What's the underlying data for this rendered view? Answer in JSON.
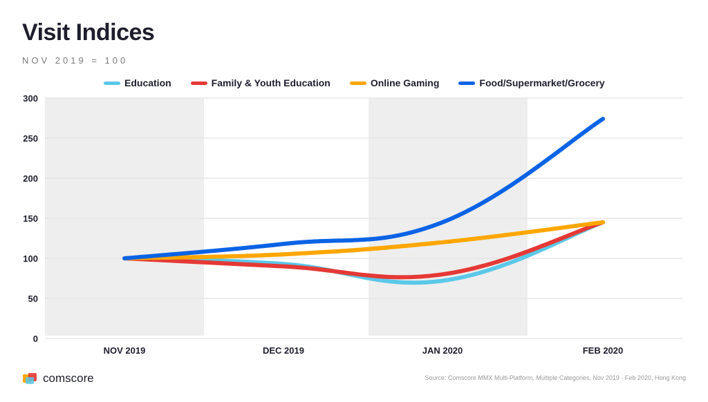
{
  "title": "Visit Indices",
  "subtitle": "NOV 2019 = 100",
  "source": "Source: Comscore MMX Multi-Platform, Multiple Categories, Nov 2019 - Feb 2020, Hong Kong",
  "brand": "comscore",
  "colors": {
    "education": "#5bc8e8",
    "family": "#e53935",
    "gaming": "#ffa600",
    "food": "#0b63e5",
    "shade": "#eeeeee",
    "grid": "#dddddd"
  },
  "chart_data": {
    "type": "line",
    "title": "Visit Indices",
    "subtitle": "NOV 2019 = 100",
    "xlabel": "",
    "ylabel": "",
    "categories": [
      "NOV 2019",
      "DEC 2019",
      "JAN 2020",
      "FEB 2020"
    ],
    "yticks": [
      "0",
      "50",
      "100",
      "150",
      "200",
      "250",
      "300"
    ],
    "ylim": [
      0,
      300
    ],
    "grid": true,
    "legend": "top",
    "series": [
      {
        "name": "Education",
        "color": "#5bc8e8",
        "values": [
          100,
          93,
          72,
          145
        ]
      },
      {
        "name": "Family & Youth Education",
        "color": "#e53935",
        "values": [
          100,
          90,
          80,
          145
        ]
      },
      {
        "name": "Online Gaming",
        "color": "#ffa600",
        "values": [
          100,
          105,
          120,
          145
        ]
      },
      {
        "name": "Food/Supermarket/Grocery",
        "color": "#0b63e5",
        "values": [
          100,
          118,
          145,
          274
        ]
      }
    ]
  }
}
